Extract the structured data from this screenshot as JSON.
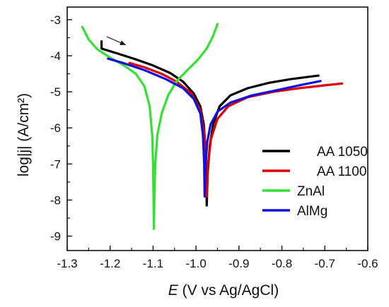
{
  "chart_data": {
    "type": "line",
    "title": "",
    "xlabel_symbol": "E",
    "xlabel_rest": " (V vs Ag/AgCl)",
    "ylabel": "log|j| (A/cm²)",
    "xlim": [
      -1.3,
      -0.6
    ],
    "ylim": [
      -9.4,
      -2.65
    ],
    "x_ticks": [
      -1.3,
      -1.2,
      -1.1,
      -1.0,
      -0.9,
      -0.8,
      -0.7,
      -0.6
    ],
    "x_tick_labels": [
      "-1.3",
      "-1.2",
      "-1.1",
      "-1.0",
      "-0.9",
      "-0.8",
      "-0.7",
      "-0.6"
    ],
    "y_ticks": [
      -9,
      -8,
      -7,
      -6,
      -5,
      -4,
      -3
    ],
    "y_tick_labels": [
      "-9",
      "-8",
      "-7",
      "-6",
      "-5",
      "-4",
      "-3"
    ],
    "grid": false,
    "legend_position": "right",
    "arrow": {
      "from": [
        -1.221,
        -3.55
      ],
      "to": [
        -1.18,
        -3.78
      ]
    },
    "series": [
      {
        "name": "AA 1050",
        "color": "#000000",
        "points": [
          [
            -1.22,
            -3.6
          ],
          [
            -1.22,
            -3.8
          ],
          [
            -1.18,
            -3.95
          ],
          [
            -1.14,
            -4.1
          ],
          [
            -1.1,
            -4.27
          ],
          [
            -1.06,
            -4.48
          ],
          [
            -1.03,
            -4.72
          ],
          [
            -1.005,
            -5.05
          ],
          [
            -0.99,
            -5.4
          ],
          [
            -0.982,
            -5.9
          ],
          [
            -0.978,
            -6.6
          ],
          [
            -0.976,
            -7.3
          ],
          [
            -0.975,
            -8.15
          ],
          [
            -0.973,
            -7.3
          ],
          [
            -0.968,
            -6.5
          ],
          [
            -0.96,
            -5.9
          ],
          [
            -0.945,
            -5.4
          ],
          [
            -0.92,
            -5.1
          ],
          [
            -0.88,
            -4.9
          ],
          [
            -0.83,
            -4.75
          ],
          [
            -0.78,
            -4.65
          ],
          [
            -0.715,
            -4.55
          ]
        ]
      },
      {
        "name": "AA 1100",
        "color": "#e00000",
        "points": [
          [
            -1.155,
            -4.2
          ],
          [
            -1.12,
            -4.32
          ],
          [
            -1.08,
            -4.5
          ],
          [
            -1.045,
            -4.72
          ],
          [
            -1.01,
            -5.05
          ],
          [
            -0.99,
            -5.5
          ],
          [
            -0.98,
            -6.2
          ],
          [
            -0.977,
            -7.1
          ],
          [
            -0.975,
            -7.9
          ],
          [
            -0.972,
            -7.0
          ],
          [
            -0.965,
            -6.3
          ],
          [
            -0.95,
            -5.75
          ],
          [
            -0.925,
            -5.4
          ],
          [
            -0.88,
            -5.15
          ],
          [
            -0.82,
            -5.0
          ],
          [
            -0.76,
            -4.9
          ],
          [
            -0.7,
            -4.82
          ],
          [
            -0.66,
            -4.77
          ]
        ]
      },
      {
        "name": "ZnAl",
        "color": "#33e033",
        "points": [
          [
            -1.265,
            -3.2
          ],
          [
            -1.25,
            -3.55
          ],
          [
            -1.23,
            -3.82
          ],
          [
            -1.2,
            -4.05
          ],
          [
            -1.17,
            -4.25
          ],
          [
            -1.14,
            -4.5
          ],
          [
            -1.12,
            -4.85
          ],
          [
            -1.108,
            -5.4
          ],
          [
            -1.102,
            -6.2
          ],
          [
            -1.1,
            -7.0
          ],
          [
            -1.099,
            -7.9
          ],
          [
            -1.098,
            -8.8
          ],
          [
            -1.097,
            -7.9
          ],
          [
            -1.095,
            -7.0
          ],
          [
            -1.09,
            -6.2
          ],
          [
            -1.08,
            -5.6
          ],
          [
            -1.065,
            -5.1
          ],
          [
            -1.045,
            -4.7
          ],
          [
            -1.02,
            -4.4
          ],
          [
            -0.995,
            -4.1
          ],
          [
            -0.975,
            -3.8
          ],
          [
            -0.96,
            -3.45
          ],
          [
            -0.95,
            -3.12
          ]
        ]
      },
      {
        "name": "AlMg",
        "color": "#1010e0",
        "points": [
          [
            -1.205,
            -4.08
          ],
          [
            -1.17,
            -4.2
          ],
          [
            -1.12,
            -4.4
          ],
          [
            -1.07,
            -4.65
          ],
          [
            -1.03,
            -4.9
          ],
          [
            -1.005,
            -5.2
          ],
          [
            -0.99,
            -5.6
          ],
          [
            -0.984,
            -6.2
          ],
          [
            -0.981,
            -7.0
          ],
          [
            -0.98,
            -7.9
          ],
          [
            -0.978,
            -7.1
          ],
          [
            -0.974,
            -6.4
          ],
          [
            -0.966,
            -5.9
          ],
          [
            -0.95,
            -5.55
          ],
          [
            -0.92,
            -5.3
          ],
          [
            -0.87,
            -5.1
          ],
          [
            -0.81,
            -4.95
          ],
          [
            -0.76,
            -4.82
          ],
          [
            -0.71,
            -4.7
          ]
        ]
      }
    ]
  }
}
